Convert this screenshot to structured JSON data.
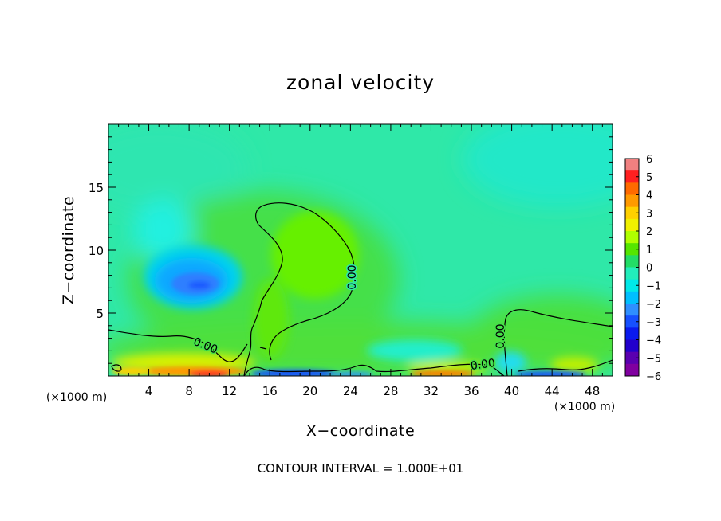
{
  "chart_data": {
    "type": "heatmap",
    "title": "zonal velocity",
    "xlabel": "X−coordinate",
    "ylabel": "Z−coordinate",
    "x_unit": "(×1000 m)",
    "y_unit": "(×1000 m)",
    "xlim": [
      0,
      50
    ],
    "ylim": [
      0,
      20
    ],
    "x_ticks": [
      4,
      8,
      12,
      16,
      20,
      24,
      28,
      32,
      36,
      40,
      44,
      48
    ],
    "y_ticks": [
      5,
      10,
      15
    ],
    "footer": "CONTOUR INTERVAL = 1.000E+01",
    "contour_label": "0.00",
    "colorbar": {
      "labels": [
        "6",
        "5",
        "4",
        "3",
        "2",
        "1",
        "0",
        "−1",
        "−2",
        "−3",
        "−4",
        "−5",
        "−6"
      ],
      "colors": [
        "#f08080",
        "#ff2020",
        "#ff6a00",
        "#ff9a00",
        "#ffd000",
        "#f0f000",
        "#b0ff00",
        "#55e600",
        "#22dd66",
        "#22eebb",
        "#00e8e8",
        "#00bfff",
        "#2f8fff",
        "#1650ff",
        "#0a1aee",
        "#2200cc",
        "#5a00b0",
        "#8000a0"
      ],
      "min": -6,
      "max": 6
    }
  }
}
